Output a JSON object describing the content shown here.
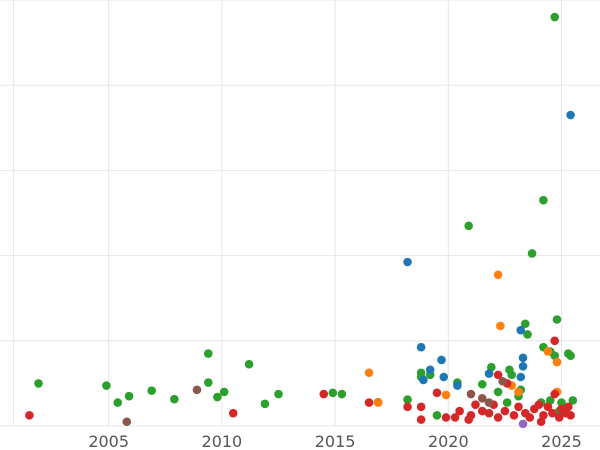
{
  "chart_data": {
    "type": "scatter",
    "title": "",
    "xlabel": "",
    "ylabel": "",
    "xlim": [
      2000.2,
      2026.7
    ],
    "ylim": [
      0,
      100
    ],
    "xticks": [
      2005,
      2010,
      2015,
      2020,
      2025
    ],
    "xtick_labels": [
      "2005",
      "2010",
      "2015",
      "2020",
      "2025"
    ],
    "yticks": [
      0,
      20,
      40,
      60,
      80,
      100
    ],
    "grid": true,
    "legend": "none",
    "series": [
      {
        "color": "#2ca02c",
        "points": [
          [
            2001.9,
            10.0
          ],
          [
            2004.9,
            9.5
          ],
          [
            2005.4,
            5.5
          ],
          [
            2005.9,
            7.0
          ],
          [
            2006.9,
            8.3
          ],
          [
            2007.9,
            6.3
          ],
          [
            2009.4,
            17.0
          ],
          [
            2009.4,
            10.2
          ],
          [
            2009.8,
            6.8
          ],
          [
            2010.1,
            8.0
          ],
          [
            2011.2,
            14.5
          ],
          [
            2011.9,
            5.2
          ],
          [
            2012.5,
            7.5
          ],
          [
            2014.9,
            7.8
          ],
          [
            2015.3,
            7.5
          ],
          [
            2016.9,
            5.6
          ],
          [
            2018.2,
            6.2
          ],
          [
            2018.8,
            12.5
          ],
          [
            2018.8,
            11.5
          ],
          [
            2019.2,
            12.0
          ],
          [
            2019.5,
            2.5
          ],
          [
            2020.4,
            10.2
          ],
          [
            2020.9,
            47.0
          ],
          [
            2021.5,
            9.8
          ],
          [
            2021.9,
            13.8
          ],
          [
            2022.2,
            8.0
          ],
          [
            2022.7,
            13.2
          ],
          [
            2022.8,
            12.0
          ],
          [
            2022.6,
            5.5
          ],
          [
            2023.1,
            7.0
          ],
          [
            2023.2,
            8.5
          ],
          [
            2023.4,
            24.0
          ],
          [
            2023.5,
            21.5
          ],
          [
            2023.7,
            40.5
          ],
          [
            2024.2,
            18.5
          ],
          [
            2024.2,
            53.0
          ],
          [
            2024.5,
            17.5
          ],
          [
            2024.7,
            96.0
          ],
          [
            2024.8,
            25.0
          ],
          [
            2024.7,
            16.5
          ],
          [
            2025.3,
            17.0
          ],
          [
            2025.4,
            16.5
          ],
          [
            2024.5,
            6.0
          ],
          [
            2025.0,
            5.5
          ],
          [
            2025.5,
            6.0
          ],
          [
            2024.1,
            5.5
          ],
          [
            2024.9,
            3.5
          ]
        ]
      },
      {
        "color": "#1f77b4",
        "points": [
          [
            2018.2,
            38.5
          ],
          [
            2018.8,
            18.5
          ],
          [
            2018.9,
            10.8
          ],
          [
            2019.2,
            13.2
          ],
          [
            2019.7,
            15.5
          ],
          [
            2019.8,
            11.5
          ],
          [
            2020.4,
            9.5
          ],
          [
            2021.8,
            12.3
          ],
          [
            2023.2,
            22.5
          ],
          [
            2023.3,
            16.0
          ],
          [
            2023.3,
            14.0
          ],
          [
            2023.2,
            11.5
          ],
          [
            2025.4,
            73.0
          ]
        ]
      },
      {
        "color": "#ff7f0e",
        "points": [
          [
            2016.5,
            12.5
          ],
          [
            2016.9,
            5.5
          ],
          [
            2019.9,
            7.3
          ],
          [
            2022.2,
            35.5
          ],
          [
            2022.3,
            23.5
          ],
          [
            2022.8,
            9.5
          ],
          [
            2023.1,
            8.0
          ],
          [
            2024.4,
            17.5
          ],
          [
            2024.8,
            15.0
          ],
          [
            2024.8,
            8.0
          ]
        ]
      },
      {
        "color": "#d62728",
        "points": [
          [
            2001.5,
            2.5
          ],
          [
            2010.5,
            3.0
          ],
          [
            2014.5,
            7.5
          ],
          [
            2016.5,
            5.5
          ],
          [
            2018.2,
            4.5
          ],
          [
            2018.8,
            4.5
          ],
          [
            2018.8,
            1.5
          ],
          [
            2019.5,
            7.8
          ],
          [
            2019.9,
            2.0
          ],
          [
            2020.3,
            2.0
          ],
          [
            2020.5,
            3.5
          ],
          [
            2020.9,
            1.5
          ],
          [
            2021.0,
            2.5
          ],
          [
            2021.2,
            5.0
          ],
          [
            2021.5,
            3.5
          ],
          [
            2021.8,
            3.0
          ],
          [
            2022.0,
            5.0
          ],
          [
            2022.2,
            2.0
          ],
          [
            2022.2,
            12.0
          ],
          [
            2022.5,
            3.5
          ],
          [
            2022.6,
            10.0
          ],
          [
            2022.9,
            2.5
          ],
          [
            2023.1,
            4.5
          ],
          [
            2023.4,
            3.0
          ],
          [
            2023.6,
            2.0
          ],
          [
            2023.8,
            4.0
          ],
          [
            2024.0,
            5.0
          ],
          [
            2024.2,
            2.5
          ],
          [
            2024.4,
            4.5
          ],
          [
            2024.6,
            3.0
          ],
          [
            2024.7,
            7.5
          ],
          [
            2024.7,
            20.0
          ],
          [
            2024.9,
            2.0
          ],
          [
            2025.0,
            4.0
          ],
          [
            2025.2,
            3.0
          ],
          [
            2025.4,
            2.5
          ],
          [
            2025.3,
            4.5
          ],
          [
            2024.1,
            1.0
          ]
        ]
      },
      {
        "color": "#8c564b",
        "points": [
          [
            2005.8,
            1.0
          ],
          [
            2008.9,
            8.5
          ],
          [
            2021.0,
            7.5
          ],
          [
            2021.5,
            6.5
          ],
          [
            2021.8,
            5.5
          ],
          [
            2022.4,
            10.5
          ]
        ]
      },
      {
        "color": "#9467bd",
        "points": [
          [
            2023.3,
            0.5
          ]
        ]
      }
    ]
  }
}
